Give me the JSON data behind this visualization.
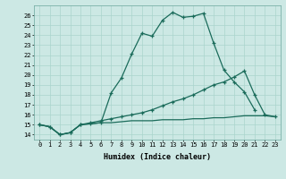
{
  "xlabel": "Humidex (Indice chaleur)",
  "ylabel": "",
  "bg_color": "#cce8e4",
  "grid_color": "#aad4cc",
  "line_color": "#1a6b5a",
  "xlim": [
    -0.5,
    23.5
  ],
  "ylim": [
    13.5,
    27.0
  ],
  "xticks": [
    0,
    1,
    2,
    3,
    4,
    5,
    6,
    7,
    8,
    9,
    10,
    11,
    12,
    13,
    14,
    15,
    16,
    17,
    18,
    19,
    20,
    21,
    22,
    23
  ],
  "yticks": [
    14,
    15,
    16,
    17,
    18,
    19,
    20,
    21,
    22,
    23,
    24,
    25,
    26
  ],
  "line1_x": [
    0,
    1,
    2,
    3,
    4,
    5,
    6,
    7,
    8,
    9,
    10,
    11,
    12,
    13,
    14,
    15,
    16,
    17,
    18,
    19,
    20,
    21
  ],
  "line1_y": [
    15.0,
    14.8,
    14.0,
    14.2,
    15.0,
    15.1,
    15.2,
    18.2,
    19.7,
    22.1,
    24.2,
    23.9,
    25.5,
    26.3,
    25.8,
    25.9,
    26.2,
    23.2,
    20.5,
    19.3,
    18.3,
    16.5
  ],
  "line2_x": [
    0,
    1,
    2,
    3,
    4,
    5,
    6,
    7,
    8,
    9,
    10,
    11,
    12,
    13,
    14,
    15,
    16,
    17,
    18,
    19,
    20,
    21,
    22,
    23
  ],
  "line2_y": [
    15.0,
    14.8,
    14.0,
    14.2,
    15.0,
    15.2,
    15.4,
    15.6,
    15.8,
    16.0,
    16.2,
    16.5,
    16.9,
    17.3,
    17.6,
    18.0,
    18.5,
    19.0,
    19.3,
    19.8,
    20.4,
    18.0,
    16.0,
    15.8
  ],
  "line3_x": [
    0,
    1,
    2,
    3,
    4,
    5,
    6,
    7,
    8,
    9,
    10,
    11,
    12,
    13,
    14,
    15,
    16,
    17,
    18,
    19,
    20,
    21,
    22,
    23
  ],
  "line3_y": [
    15.0,
    14.8,
    14.0,
    14.2,
    15.0,
    15.1,
    15.2,
    15.2,
    15.3,
    15.4,
    15.4,
    15.4,
    15.5,
    15.5,
    15.5,
    15.6,
    15.6,
    15.7,
    15.7,
    15.8,
    15.9,
    15.9,
    15.9,
    15.8
  ]
}
